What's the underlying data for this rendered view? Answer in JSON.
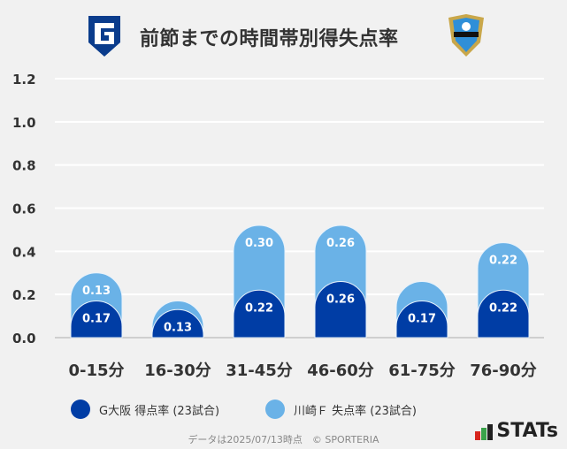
{
  "header": {
    "title": "前節までの時間帯別得失点率",
    "logo_left": "G",
    "logo_right": "KAWASAKI"
  },
  "chart_data": {
    "type": "bar",
    "stacked": true,
    "categories": [
      "0-15分",
      "16-30分",
      "31-45分",
      "46-60分",
      "61-75分",
      "76-90分"
    ],
    "series": [
      {
        "name": "G大阪 得点率 (23試合)",
        "values": [
          0.17,
          0.13,
          0.22,
          0.26,
          0.17,
          0.22
        ],
        "labels": [
          "0.17",
          "0.13",
          "0.22",
          "0.26",
          "0.17",
          "0.22"
        ],
        "color": "#003da5"
      },
      {
        "name": "川崎Ｆ 失点率 (23試合)",
        "values": [
          0.13,
          0.04,
          0.3,
          0.26,
          0.09,
          0.22
        ],
        "labels": [
          "0.13",
          "",
          "0.30",
          "0.26",
          "",
          "0.22"
        ],
        "color": "#6ab2e7"
      }
    ],
    "yticks": [
      "0.0",
      "0.2",
      "0.4",
      "0.6",
      "0.8",
      "1.0",
      "1.2"
    ],
    "ylim": [
      0,
      1.2
    ],
    "grid": true,
    "legend": "bottom"
  },
  "footer": {
    "note": "データは2025/07/13時点　© SPORTERIA",
    "brand": "STATs"
  }
}
